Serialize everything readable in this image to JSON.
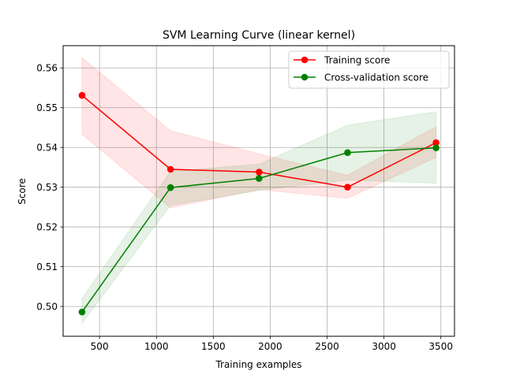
{
  "chart_data": {
    "type": "line",
    "title": "SVM Learning Curve (linear kernel)",
    "xlabel": "Training examples",
    "ylabel": "Score",
    "xlim": [
      180,
      3620
    ],
    "ylim": [
      0.4925,
      0.5656
    ],
    "xticks": [
      500,
      1000,
      1500,
      2000,
      2500,
      3000,
      3500
    ],
    "xtick_labels": [
      "500",
      "1000",
      "1500",
      "2000",
      "2500",
      "3000",
      "3500"
    ],
    "yticks": [
      0.5,
      0.51,
      0.52,
      0.53,
      0.54,
      0.55,
      0.56
    ],
    "ytick_labels": [
      "0.50",
      "0.51",
      "0.52",
      "0.53",
      "0.54",
      "0.55",
      "0.56"
    ],
    "grid": true,
    "legend_position": "top-right",
    "x": [
      346,
      1124,
      1902,
      2680,
      3458
    ],
    "series": [
      {
        "name": "Training score",
        "color": "#ff0000",
        "band_color": "#ff0000",
        "values": [
          0.5531,
          0.5345,
          0.5338,
          0.53,
          0.5412
        ],
        "lower": [
          0.5433,
          0.5248,
          0.5294,
          0.5272,
          0.5375
        ],
        "upper": [
          0.5626,
          0.5442,
          0.5384,
          0.533,
          0.5452
        ]
      },
      {
        "name": "Cross-validation score",
        "color": "#008000",
        "band_color": "#008000",
        "values": [
          0.4986,
          0.5299,
          0.5322,
          0.5387,
          0.5399
        ],
        "lower": [
          0.4958,
          0.5254,
          0.5292,
          0.5318,
          0.531
        ],
        "upper": [
          0.502,
          0.534,
          0.5358,
          0.5456,
          0.549
        ]
      }
    ]
  }
}
